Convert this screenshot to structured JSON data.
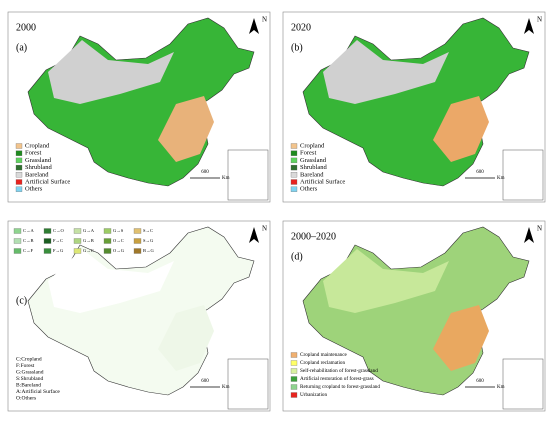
{
  "panels": [
    {
      "title": "2000",
      "label": "(a)",
      "north": "N",
      "scale": "600",
      "unit": "Km",
      "legend": [
        {
          "name": "Cropland",
          "color": "#f2c48d"
        },
        {
          "name": "Forest",
          "color": "#1f8a1f"
        },
        {
          "name": "Grassland",
          "color": "#5fd35f"
        },
        {
          "name": "Shrubland",
          "color": "#2f6f2f"
        },
        {
          "name": "Bareland",
          "color": "#d9d9d9"
        },
        {
          "name": "Artificial Surface",
          "color": "#e8231e"
        },
        {
          "name": "Others",
          "color": "#7fd3f0"
        }
      ]
    },
    {
      "title": "2020",
      "label": "(b)",
      "north": "N",
      "scale": "600",
      "unit": "Km",
      "legend": [
        {
          "name": "Cropland",
          "color": "#f2c48d"
        },
        {
          "name": "Forest",
          "color": "#1f8a1f"
        },
        {
          "name": "Grassland",
          "color": "#5fd35f"
        },
        {
          "name": "Shrubland",
          "color": "#2f6f2f"
        },
        {
          "name": "Bareland",
          "color": "#d9d9d9"
        },
        {
          "name": "Artificial Surface",
          "color": "#e8231e"
        },
        {
          "name": "Others",
          "color": "#7fd3f0"
        }
      ]
    },
    {
      "label": "(c)",
      "north": "N",
      "scale": "600",
      "unit": "Km",
      "codes": [
        {
          "name": "C→A",
          "color": "#8fd48f"
        },
        {
          "name": "C→O",
          "color": "#2e7d32"
        },
        {
          "name": "G→A",
          "color": "#c5e1a5"
        },
        {
          "name": "G→S",
          "color": "#9ccc65"
        },
        {
          "name": "S→C",
          "color": "#e0c070"
        },
        {
          "name": "C→B",
          "color": "#b2dfb2"
        },
        {
          "name": "F→C",
          "color": "#1b5e20"
        },
        {
          "name": "G→B",
          "color": "#aed581"
        },
        {
          "name": "O→C",
          "color": "#689f38"
        },
        {
          "name": "S→G",
          "color": "#c8a040"
        },
        {
          "name": "C→F",
          "color": "#66bb6a"
        },
        {
          "name": "F→G",
          "color": "#388e3c"
        },
        {
          "name": "G→C",
          "color": "#dce775"
        },
        {
          "name": "O→G",
          "color": "#558b2f"
        },
        {
          "name": "B→G",
          "color": "#a0782a"
        }
      ],
      "notes": [
        "C:Cropland",
        "F:Forest",
        "G:Grassland",
        "S:Shrubland",
        "B:Bareland",
        "A:Artificial Surface",
        "O:Others"
      ]
    },
    {
      "title": "2000–2020",
      "label": "(d)",
      "north": "N",
      "scale": "600",
      "unit": "Km",
      "legend": [
        {
          "name": "Cropland maintenance",
          "color": "#f0b070"
        },
        {
          "name": "Cropland reclamation",
          "color": "#ffff66"
        },
        {
          "name": "Self-rehabilitation of forest-grassland",
          "color": "#d8f0a0"
        },
        {
          "name": "Artificial restoration of forest-grass",
          "color": "#3aa03a"
        },
        {
          "name": "Returning cropland to forest-grassland",
          "color": "#8fd38f"
        },
        {
          "name": "Urbanization",
          "color": "#e8231e"
        }
      ]
    }
  ]
}
